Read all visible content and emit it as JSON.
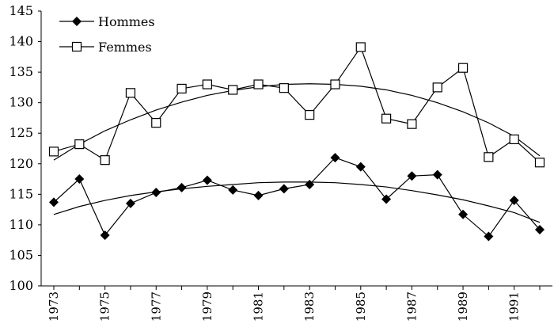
{
  "chart_data": {
    "type": "line",
    "title": "",
    "xlabel": "",
    "ylabel": "",
    "ylim": [
      100,
      145
    ],
    "yticks": [
      100,
      105,
      110,
      115,
      120,
      125,
      130,
      135,
      140,
      145
    ],
    "xticks": [
      "1973",
      "1975",
      "1977",
      "1979",
      "1981",
      "1983",
      "1985",
      "1987",
      "1989",
      "1991"
    ],
    "x": [
      1973,
      1974,
      1975,
      1976,
      1977,
      1978,
      1979,
      1980,
      1981,
      1982,
      1983,
      1984,
      1985,
      1986,
      1987,
      1988,
      1989,
      1990,
      1991,
      1992
    ],
    "legend_position": "top-left",
    "grid": false,
    "series": [
      {
        "name": "Hommes",
        "marker": "filled-diamond",
        "color": "#000000",
        "values": [
          113.7,
          117.5,
          108.3,
          113.5,
          115.3,
          116.1,
          117.3,
          115.7,
          114.8,
          115.9,
          116.6,
          121.0,
          119.5,
          114.2,
          118.0,
          118.2,
          111.7,
          108.1,
          114.0,
          109.2
        ],
        "trend": [
          111.7,
          113.0,
          114.0,
          114.8,
          115.4,
          115.9,
          116.3,
          116.6,
          116.9,
          117.0,
          117.0,
          116.9,
          116.6,
          116.2,
          115.6,
          114.9,
          114.1,
          113.1,
          112.0,
          110.4
        ]
      },
      {
        "name": "Femmes",
        "marker": "open-square",
        "color": "#000000",
        "values": [
          122.0,
          123.2,
          120.6,
          131.6,
          126.7,
          132.3,
          133.0,
          132.1,
          133.0,
          132.4,
          128.0,
          133.0,
          139.1,
          127.4,
          126.5,
          132.5,
          135.7,
          121.1,
          124.0,
          120.2
        ],
        "trend": [
          120.6,
          123.2,
          125.4,
          127.2,
          128.8,
          130.1,
          131.2,
          132.0,
          132.6,
          133.0,
          133.1,
          133.0,
          132.7,
          132.1,
          131.2,
          130.0,
          128.5,
          126.7,
          124.5,
          121.3
        ]
      }
    ]
  }
}
